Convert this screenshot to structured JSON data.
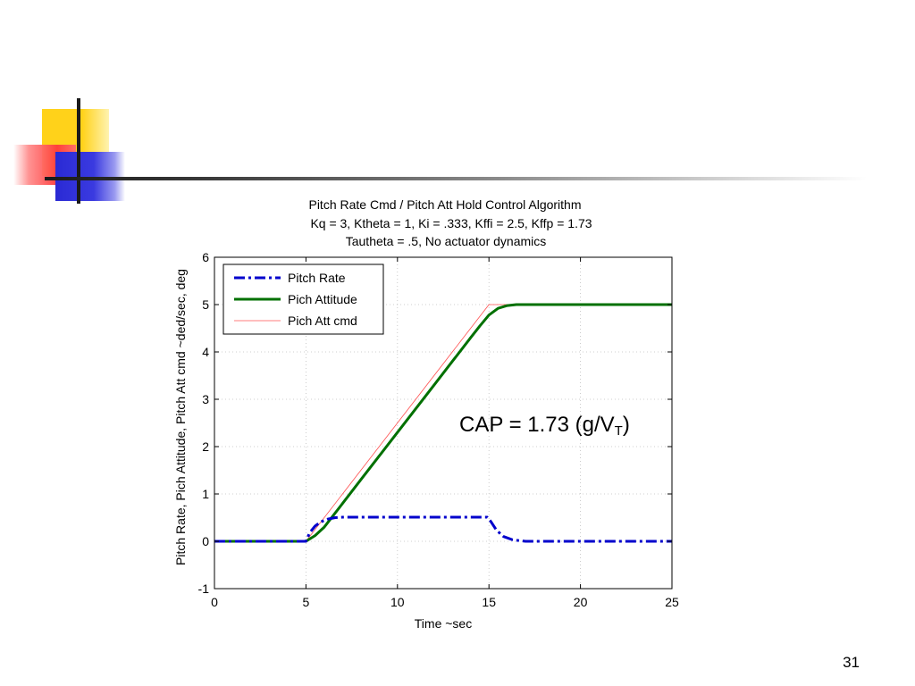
{
  "slide": {
    "page_number": "31",
    "annotation": {
      "prefix": "CAP = 1.73 (g/V",
      "subscript": "T",
      "suffix": ")"
    }
  },
  "colors": {
    "pitch_rate": "#0000cc",
    "pitch_attitude": "#007000",
    "pitch_att_cmd": "#ff5050",
    "grid": "#c0c0c0"
  },
  "chart_data": {
    "type": "line",
    "title": [
      "Pitch Rate Cmd / Pitch Att Hold Control Algorithm",
      "Kq = 3, Ktheta = 1, Ki = .333, Kffi = 2.5, Kffp = 1.73",
      "Tautheta = .5, No actuator dynamics"
    ],
    "xlabel": "Time ~sec",
    "ylabel": "Pitch Rate, Pich Attitude, Pitch Att cmd ~ded/sec, deg",
    "xlim": [
      0,
      25
    ],
    "ylim": [
      -1,
      6
    ],
    "xticks": [
      0,
      5,
      10,
      15,
      20,
      25
    ],
    "yticks": [
      -1,
      0,
      1,
      2,
      3,
      4,
      5,
      6
    ],
    "grid": true,
    "legend_position": "top-left",
    "series": [
      {
        "name": "Pitch Rate",
        "style": "dashdot",
        "x": [
          0,
          5,
          5.2,
          5.5,
          5.8,
          6.2,
          6.6,
          7,
          10,
          14.9,
          15.1,
          15.4,
          15.8,
          16.3,
          17,
          18,
          25
        ],
        "y": [
          0,
          0,
          0.18,
          0.32,
          0.41,
          0.47,
          0.5,
          0.51,
          0.51,
          0.51,
          0.42,
          0.24,
          0.1,
          0.03,
          0.0,
          0.0,
          0.0
        ]
      },
      {
        "name": "Pich Attitude",
        "style": "solid",
        "x": [
          0,
          5,
          5.5,
          6,
          7,
          8,
          9,
          10,
          11,
          12,
          13,
          14,
          14.5,
          15,
          15.5,
          16,
          16.5,
          17,
          25
        ],
        "y": [
          0,
          0,
          0.12,
          0.3,
          0.8,
          1.3,
          1.8,
          2.3,
          2.8,
          3.3,
          3.8,
          4.3,
          4.55,
          4.78,
          4.92,
          4.98,
          5.0,
          5.0,
          5.0
        ]
      },
      {
        "name": "Pich Att cmd",
        "style": "thin",
        "x": [
          0,
          5,
          15,
          25
        ],
        "y": [
          0,
          0,
          5,
          5
        ]
      }
    ]
  }
}
